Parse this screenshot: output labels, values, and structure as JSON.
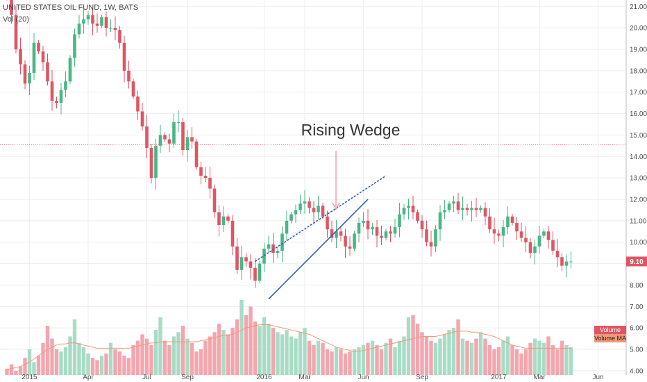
{
  "header": {
    "symbol_line": "UNITED STATES OIL FUND, 1W, BATS",
    "volume_line": "Vol (20)"
  },
  "chart_data": {
    "type": "candlestick",
    "title": "UNITED STATES OIL FUND, 1W, BATS",
    "annotation": "Rising Wedge",
    "last_price": "9.10",
    "horizontal_line": 14.55,
    "ylim": [
      3.8,
      21.3
    ],
    "y_ticks": [
      "21.00",
      "20.00",
      "19.00",
      "18.00",
      "17.00",
      "16.00",
      "15.00",
      "14.00",
      "13.00",
      "12.00",
      "11.00",
      "10.00",
      "9.00",
      "8.00",
      "7.00",
      "6.00",
      "5.00",
      "4.00"
    ],
    "x_ticks": [
      {
        "label": "2015",
        "week": 5
      },
      {
        "label": "Apr",
        "week": 18
      },
      {
        "label": "Jul",
        "week": 31
      },
      {
        "label": "Sep",
        "week": 40
      },
      {
        "label": "2016",
        "week": 57
      },
      {
        "label": "Mar",
        "week": 66
      },
      {
        "label": "Jun",
        "week": 79
      },
      {
        "label": "Sep",
        "week": 92
      },
      {
        "label": "2017",
        "week": 109
      },
      {
        "label": "Mar",
        "week": 118
      },
      {
        "label": "Jun",
        "week": 131
      }
    ],
    "volume_legend": [
      "Volume",
      "Volume MA"
    ],
    "wedge_upper": [
      [
        55,
        9.1
      ],
      [
        84,
        13.1
      ]
    ],
    "wedge_lower": [
      [
        58,
        7.35
      ],
      [
        80,
        12.0
      ]
    ],
    "closes": [
      21.4,
      20.6,
      19.0,
      18.3,
      17.4,
      17.9,
      19.3,
      18.9,
      18.4,
      17.5,
      16.6,
      16.5,
      17.1,
      17.5,
      18.6,
      19.7,
      20.2,
      20.4,
      20.6,
      20.2,
      20.1,
      20.5,
      20.0,
      20.0,
      19.9,
      19.3,
      18.0,
      17.5,
      16.8,
      16.1,
      15.4,
      14.4,
      13.0,
      14.5,
      15.0,
      14.8,
      14.6,
      15.6,
      15.6,
      14.3,
      14.9,
      14.7,
      13.5,
      13.1,
      13.0,
      12.5,
      11.4,
      10.8,
      11.2,
      11.0,
      9.8,
      8.7,
      9.3,
      9.1,
      8.8,
      8.2,
      9.0,
      9.7,
      9.9,
      9.5,
      9.6,
      10.4,
      11.0,
      11.3,
      11.5,
      11.8,
      11.9,
      11.6,
      11.4,
      11.7,
      11.2,
      10.6,
      10.2,
      10.5,
      10.3,
      9.8,
      9.7,
      10.4,
      10.9,
      11.0,
      10.6,
      10.7,
      10.3,
      10.2,
      10.5,
      10.4,
      10.7,
      11.3,
      11.6,
      11.7,
      11.4,
      11.0,
      10.6,
      10.0,
      9.8,
      10.6,
      11.4,
      11.5,
      11.8,
      11.9,
      11.5,
      11.6,
      11.5,
      11.6,
      11.5,
      11.6,
      11.2,
      10.6,
      10.4,
      10.3,
      10.7,
      11.2,
      10.9,
      10.5,
      10.2,
      10.0,
      9.5,
      9.8,
      10.3,
      10.5,
      10.1,
      9.6,
      9.3,
      8.9,
      9.1,
      9.1
    ],
    "volumes": [
      4.1,
      4.3,
      4.0,
      4.2,
      4.6,
      5.0,
      4.4,
      4.7,
      5.3,
      6.1,
      5.5,
      5.0,
      4.9,
      5.1,
      5.6,
      6.4,
      5.3,
      5.1,
      4.8,
      4.6,
      4.5,
      4.7,
      4.8,
      5.3,
      5.0,
      4.9,
      4.7,
      4.6,
      5.2,
      5.4,
      5.7,
      5.5,
      5.2,
      5.9,
      6.5,
      5.4,
      5.2,
      5.6,
      5.8,
      6.1,
      5.5,
      5.3,
      4.9,
      5.0,
      5.4,
      5.6,
      5.8,
      6.2,
      5.9,
      5.7,
      6.0,
      6.4,
      7.3,
      6.6,
      7.0,
      6.3,
      6.1,
      6.5,
      6.2,
      6.0,
      5.8,
      5.7,
      5.9,
      5.6,
      5.5,
      5.8,
      6.0,
      5.4,
      5.2,
      5.4,
      5.3,
      5.0,
      4.9,
      5.1,
      5.0,
      4.8,
      4.9,
      5.0,
      5.1,
      5.2,
      5.3,
      5.4,
      5.2,
      5.0,
      5.3,
      5.5,
      5.1,
      5.4,
      5.6,
      6.5,
      6.6,
      6.2,
      5.8,
      5.6,
      5.4,
      5.3,
      5.5,
      5.7,
      5.9,
      6.0,
      6.4,
      5.5,
      5.4,
      5.3,
      5.5,
      5.8,
      5.5,
      5.2,
      5.0,
      5.1,
      5.4,
      5.6,
      5.2,
      5.0,
      4.8,
      5.0,
      5.3,
      5.5,
      5.4,
      5.3,
      5.6,
      5.2,
      5.0,
      5.4,
      5.2,
      5.1
    ],
    "volume_ma": [
      4.05,
      4.1,
      4.15,
      4.2,
      4.3,
      4.4,
      4.55,
      4.7,
      4.85,
      5.0,
      5.1,
      5.2,
      5.25,
      5.25,
      5.3,
      5.3,
      5.25,
      5.2,
      5.15,
      5.1,
      5.05,
      5.05,
      5.05,
      5.05,
      5.05,
      5.05,
      5.05,
      5.05,
      5.1,
      5.15,
      5.2,
      5.25,
      5.3,
      5.3,
      5.35,
      5.35,
      5.35,
      5.35,
      5.35,
      5.35,
      5.35,
      5.35,
      5.35,
      5.4,
      5.45,
      5.5,
      5.55,
      5.6,
      5.65,
      5.65,
      5.7,
      5.8,
      5.9,
      6.0,
      6.05,
      6.1,
      6.15,
      6.15,
      6.15,
      6.1,
      6.05,
      6.0,
      5.95,
      5.9,
      5.85,
      5.8,
      5.75,
      5.7,
      5.6,
      5.5,
      5.4,
      5.3,
      5.2,
      5.1,
      5.05,
      5.0,
      4.95,
      4.9,
      4.9,
      4.95,
      5.0,
      5.05,
      5.1,
      5.15,
      5.2,
      5.25,
      5.3,
      5.35,
      5.4,
      5.45,
      5.5,
      5.55,
      5.6,
      5.6,
      5.6,
      5.6,
      5.65,
      5.7,
      5.75,
      5.8,
      5.85,
      5.85,
      5.85,
      5.8,
      5.8,
      5.75,
      5.7,
      5.65,
      5.6,
      5.5,
      5.4,
      5.3,
      5.2,
      5.15,
      5.1,
      5.05,
      5.05,
      5.05,
      5.05,
      5.05,
      5.05,
      5.05,
      5.05,
      5.05,
      5.05,
      5.05
    ],
    "up_color": "#48b685",
    "down_color": "#e05563"
  }
}
